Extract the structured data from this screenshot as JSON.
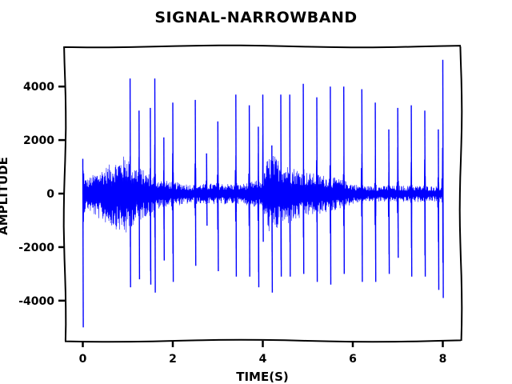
{
  "chart_data": {
    "type": "line",
    "title": "SIGNAL-NARROWBAND",
    "xlabel": "TIME(S)",
    "ylabel": "AMPLITUDE",
    "xlim": [
      -0.4,
      8.4
    ],
    "ylim": [
      -5500,
      5500
    ],
    "xticks": [
      0,
      2,
      4,
      6,
      8
    ],
    "yticks": [
      -4000,
      -2000,
      0,
      2000,
      4000
    ],
    "xtick_labels": [
      "0",
      "2",
      "4",
      "6",
      "8"
    ],
    "ytick_labels": [
      "-4000",
      "-2000",
      "0",
      "2000",
      "4000"
    ],
    "grid": false,
    "series": [
      {
        "color": "#0000ff",
        "envelope_x": [
          0.0,
          0.05,
          0.1,
          0.3,
          0.6,
          0.8,
          1.0,
          1.05,
          1.1,
          1.3,
          1.4,
          1.5,
          1.6,
          1.8,
          2.0,
          2.4,
          2.8,
          3.0,
          3.5,
          4.0,
          4.1,
          4.2,
          4.5,
          5.0,
          5.5,
          5.8,
          6.0,
          6.2,
          6.5,
          7.0,
          7.5,
          7.8,
          8.0
        ],
        "envelope_upper": [
          1300,
          600,
          550,
          800,
          1100,
          1300,
          1500,
          1300,
          1100,
          950,
          800,
          750,
          600,
          500,
          450,
          350,
          380,
          400,
          350,
          550,
          1300,
          1500,
          1100,
          800,
          650,
          500,
          380,
          300,
          280,
          300,
          300,
          280,
          280
        ],
        "envelope_lower": [
          -1300,
          -650,
          -600,
          -900,
          -1200,
          -1400,
          -1600,
          -1400,
          -1200,
          -1000,
          -850,
          -800,
          -650,
          -520,
          -480,
          -380,
          -400,
          -420,
          -380,
          -580,
          -1400,
          -1500,
          -1200,
          -850,
          -700,
          -520,
          -400,
          -320,
          -300,
          -320,
          -320,
          -300,
          -300
        ],
        "spikes": [
          {
            "t": 0.0,
            "max": 1300,
            "min": -5000
          },
          {
            "t": 1.05,
            "max": 4300,
            "min": -3500
          },
          {
            "t": 1.25,
            "max": 3100,
            "min": -3200
          },
          {
            "t": 1.5,
            "max": 3200,
            "min": -3400
          },
          {
            "t": 1.6,
            "max": 4300,
            "min": -3700
          },
          {
            "t": 1.8,
            "max": 2100,
            "min": -2500
          },
          {
            "t": 2.0,
            "max": 3400,
            "min": -3300
          },
          {
            "t": 2.5,
            "max": 3500,
            "min": -2700
          },
          {
            "t": 2.75,
            "max": 1500,
            "min": -1200
          },
          {
            "t": 3.0,
            "max": 2700,
            "min": -2900
          },
          {
            "t": 3.4,
            "max": 3700,
            "min": -3100
          },
          {
            "t": 3.7,
            "max": 3300,
            "min": -3100
          },
          {
            "t": 3.9,
            "max": 2500,
            "min": -3500
          },
          {
            "t": 4.0,
            "max": 3700,
            "min": -1800
          },
          {
            "t": 4.2,
            "max": 1800,
            "min": -3700
          },
          {
            "t": 4.4,
            "max": 3700,
            "min": -3100
          },
          {
            "t": 4.6,
            "max": 3700,
            "min": -3100
          },
          {
            "t": 4.9,
            "max": 4100,
            "min": -3000
          },
          {
            "t": 5.2,
            "max": 3600,
            "min": -3300
          },
          {
            "t": 5.5,
            "max": 4000,
            "min": -3400
          },
          {
            "t": 5.8,
            "max": 4000,
            "min": -3000
          },
          {
            "t": 6.2,
            "max": 3900,
            "min": -3300
          },
          {
            "t": 6.5,
            "max": 3400,
            "min": -3300
          },
          {
            "t": 6.8,
            "max": 2400,
            "min": -3000
          },
          {
            "t": 7.0,
            "max": 3200,
            "min": -2400
          },
          {
            "t": 7.3,
            "max": 3300,
            "min": -3100
          },
          {
            "t": 7.6,
            "max": 3100,
            "min": -3100
          },
          {
            "t": 7.9,
            "max": 2400,
            "min": -3600
          },
          {
            "t": 8.0,
            "max": 5000,
            "min": -3900
          }
        ]
      }
    ]
  }
}
